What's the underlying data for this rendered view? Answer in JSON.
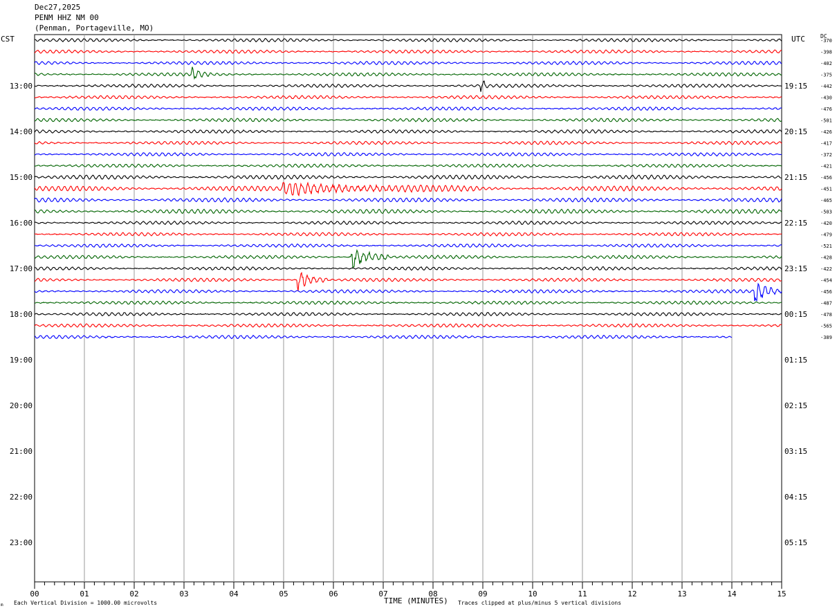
{
  "header": {
    "date": "Dec27,2025",
    "station": "PENM HHZ NM 00",
    "location": "(Penman, Portageville, MO)"
  },
  "labels": {
    "left_tz": "CST",
    "right_tz": "UTC",
    "dc": "DC",
    "xlabel": "TIME (MINUTES)",
    "scale_note": "Each Vertical Division = 1000.00 microvolts",
    "clip_note": "Traces clipped at plus/minus 5 vertical divisions",
    "mark": "m"
  },
  "chart_data": {
    "type": "line",
    "title": "",
    "xlabel": "TIME (MINUTES)",
    "xlim": [
      0,
      15
    ],
    "x_ticks": [
      "00",
      "01",
      "02",
      "03",
      "04",
      "05",
      "06",
      "07",
      "08",
      "09",
      "10",
      "11",
      "12",
      "13",
      "14",
      "15"
    ],
    "left_hour_labels": [
      "13:00",
      "14:00",
      "15:00",
      "16:00",
      "17:00",
      "18:00",
      "19:00",
      "20:00",
      "21:00",
      "22:00",
      "23:00"
    ],
    "right_hour_labels": [
      "19:15",
      "20:15",
      "21:15",
      "22:15",
      "23:15",
      "00:15",
      "01:15",
      "02:15",
      "03:15",
      "04:15",
      "05:15"
    ],
    "trace_minutes": 15,
    "trace_colors": [
      "#000000",
      "#ff0000",
      "#0000ff",
      "#006400"
    ],
    "dc_offsets": [
      "-370",
      "-398",
      "-402",
      "-375",
      "-442",
      "-430",
      "-476",
      "-501",
      "-426",
      "-417",
      "-372",
      "-421",
      "-456",
      "-451",
      "-465",
      "-503",
      "-420",
      "-479",
      "-521",
      "-428",
      "-422",
      "-454",
      "-456",
      "-487",
      "-478",
      "-565",
      "-389"
    ],
    "last_trace_end_minute": 14,
    "events": [
      {
        "trace": 3,
        "minute": 3.2,
        "amplitude": 0.7,
        "duration": 0.35
      },
      {
        "trace": 4,
        "minute": 9.0,
        "amplitude": 0.8,
        "duration": 0.1
      },
      {
        "trace": 13,
        "minute": 5.0,
        "amplitude": 0.7,
        "duration": 4.0
      },
      {
        "trace": 19,
        "minute": 6.4,
        "amplitude": 1.6,
        "duration": 0.7
      },
      {
        "trace": 21,
        "minute": 5.3,
        "amplitude": 1.1,
        "duration": 0.6
      },
      {
        "trace": 22,
        "minute": 14.5,
        "amplitude": 1.3,
        "duration": 0.5
      }
    ]
  }
}
